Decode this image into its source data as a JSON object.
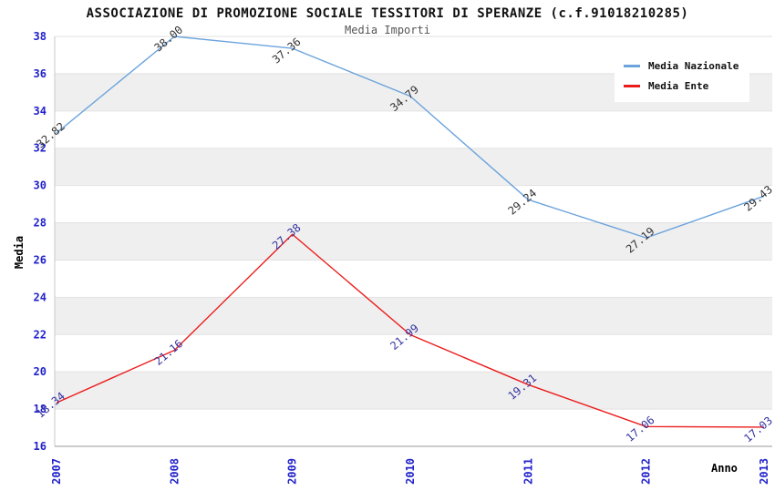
{
  "header": {
    "title": "ASSOCIAZIONE DI PROMOZIONE SOCIALE TESSITORI DI SPERANZE (c.f.91018210285)",
    "subtitle": "Media Importi"
  },
  "legend": {
    "position": "top-right",
    "items": [
      {
        "label": "Media Nazionale",
        "color": "#6ba3dc"
      },
      {
        "label": "Media Ente",
        "color": "#ec1c1c"
      }
    ]
  },
  "chart_data": {
    "type": "line",
    "title": "ASSOCIAZIONE DI PROMOZIONE SOCIALE TESSITORI DI SPERANZE (c.f.91018210285)",
    "subtitle": "Media Importi",
    "x": [
      "2007",
      "2008",
      "2009",
      "2010",
      "2011",
      "2012",
      "2013"
    ],
    "series": [
      {
        "name": "Media Nazionale",
        "color": "#6ba3dc",
        "label_color": "#333333",
        "values": [
          32.82,
          38.0,
          37.36,
          34.79,
          29.24,
          27.19,
          29.43
        ]
      },
      {
        "name": "Media Ente",
        "color": "#ec1c1c",
        "label_color": "#3333a0",
        "values": [
          18.34,
          21.16,
          27.38,
          21.99,
          19.31,
          17.06,
          17.03
        ]
      }
    ],
    "xlabel": "Anno",
    "ylabel": "Media",
    "ylim": [
      16,
      38
    ],
    "ytick_step": 2,
    "grid": true,
    "legend_position": "top-right",
    "label_decimals": 2,
    "tick_label_color": "#2222cc",
    "band_colors": [
      "#ffffff",
      "#efefef"
    ],
    "grid_color": "#e2e2e2",
    "y_axis_line_color": "#c8c8c8",
    "x_axis_line_color": "#999999"
  }
}
